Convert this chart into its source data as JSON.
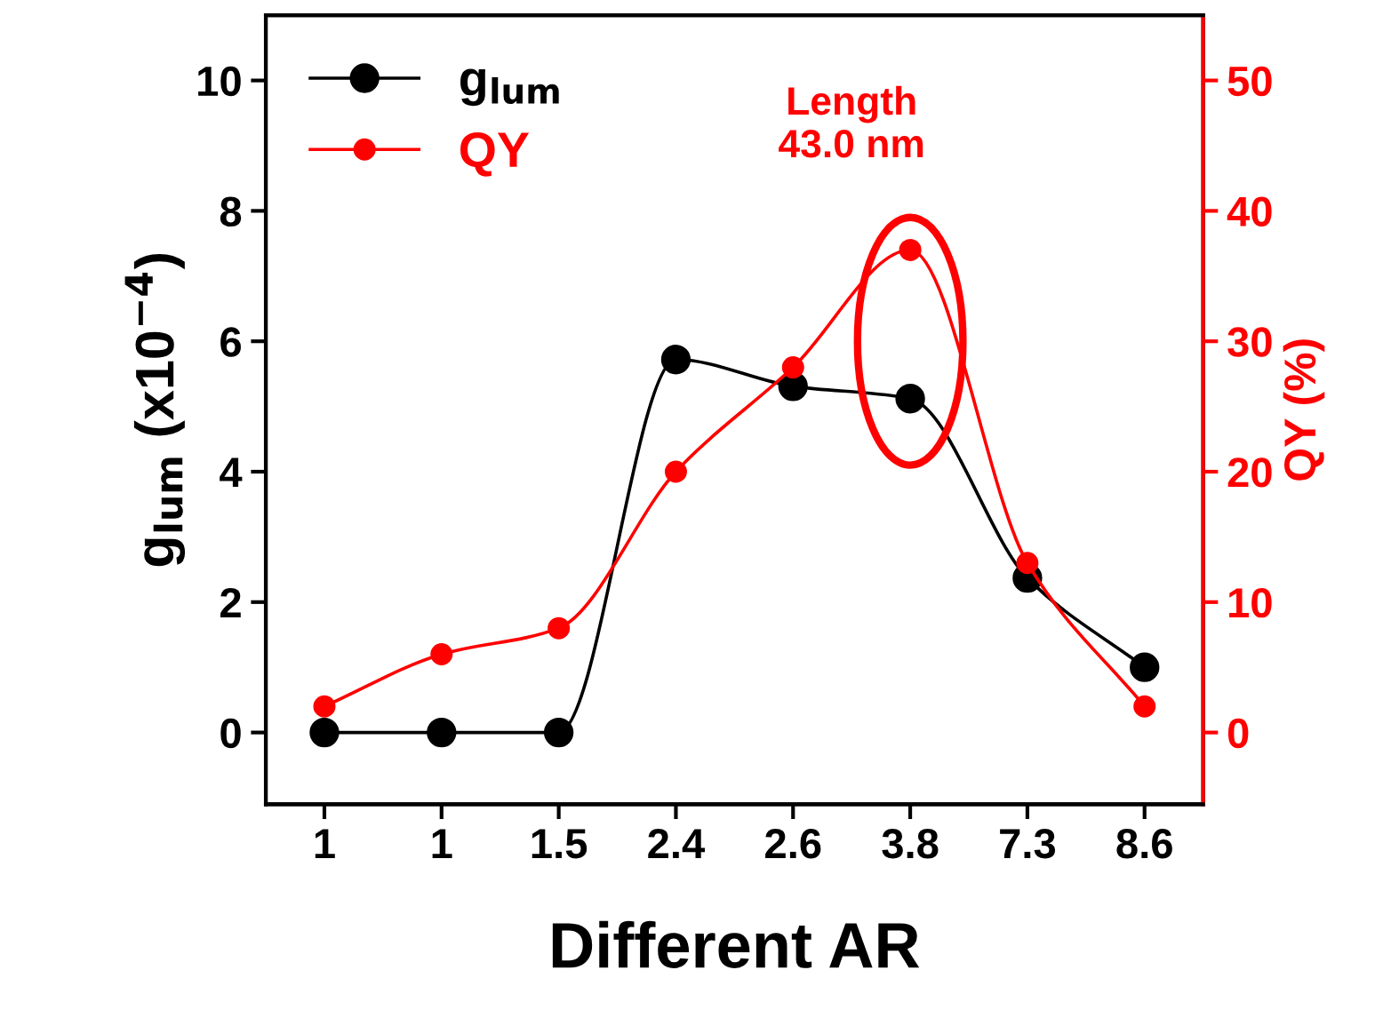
{
  "chart_data": {
    "type": "line",
    "xlabel": "Different AR",
    "ylabel": "g$_{lum}$ (x10$^{−4}$)",
    "y2label": "QY (%)",
    "categories": [
      "1",
      "1",
      "1.5",
      "2.4",
      "2.6",
      "3.8",
      "7.3",
      "8.6"
    ],
    "series": [
      {
        "name": "g$_{lum}$",
        "color": "#000000",
        "values": [
          0,
          0,
          0,
          5.72,
          5.31,
          5.12,
          2.37,
          1.0
        ]
      },
      {
        "name": "QY",
        "color": "#ff0000",
        "axis": "y2",
        "values": [
          2,
          6,
          8,
          20,
          28,
          37,
          13,
          2
        ]
      }
    ],
    "ylim": [
      -1.1,
      11
    ],
    "yticks": [
      0,
      2,
      4,
      6,
      8,
      10
    ],
    "y2lim": [
      -5.5,
      55
    ],
    "y2ticks": [
      0,
      10,
      20,
      30,
      40,
      50
    ],
    "annotations": [
      "Length\n43.0 nm"
    ],
    "marker": "circle",
    "line_style": "solid",
    "grid": false,
    "legend": "top left"
  }
}
